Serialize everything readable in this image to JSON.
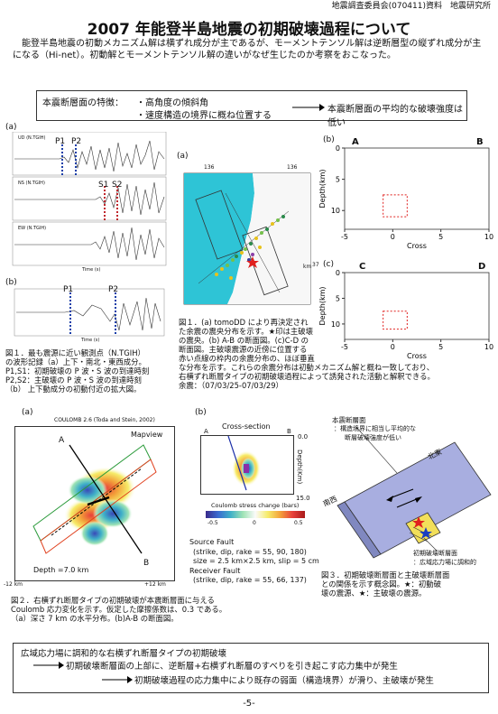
{
  "header": {
    "right_text": "地震調査委員会(070411)資料　地震研究所"
  },
  "title": "2007 年能登半島地震の初期破壊過程について",
  "intro": "　能登半島地震の初動メカニズム解は横ずれ成分が主であるが、モーメントテンソル解は逆断層型の縦ずれ成分が主になる（Hi-net）。初動解とモーメントテンソル解の違いがなぜ生じたのか考察をおこなった。",
  "feature_box": {
    "label": "本震断層面の特徴：",
    "item1": "・高角度の傾斜角",
    "item2": "・速度構造の境界に概ね位置する",
    "result": "本震断層面の平均的な破壊強度は低い"
  },
  "fig1": {
    "panel_a": "(a)",
    "panel_b": "(b)",
    "trace1_label": "UD (N.TGIH)",
    "trace2_label": "NS (N.TGIH)",
    "trace3_label": "EW (N.TGIH)",
    "p1": "P1",
    "p2": "P2",
    "s1": "S1",
    "s2": "S2",
    "time_label_a": "Time (s)",
    "time_label_b": "Time (s)",
    "caption": [
      "図１．最も震源に近い観測点（N.TGIH）",
      "の波形記録（a）上下・南北・東西成分。",
      "P1,S1：初期破壊の P 波・S 波の到達時刻",
      "P2,S2：主破壊の P 波・S 波の到達時刻",
      "（b） 上下動成分の初動付近の拡大図。"
    ]
  },
  "fig_map": {
    "panel_a": "(a)",
    "panel_b": "(b)",
    "panel_c": "(c)",
    "lon1": "136",
    "lon2": "136",
    "lat": "37",
    "km": "km",
    "label_A": "A",
    "label_B": "B",
    "label_C": "C",
    "label_D": "D",
    "depth_label": "Depth(km)",
    "cross_label": "Cross",
    "caption": [
      "図１．(a) tomoDD により再決定され",
      "た余震の震央分布を示す。★印は主破壊",
      "の震央。(b) A-B の断面図。(c)C-D の",
      "断面図。主破壊震源の近傍に位置する",
      "赤い点線の枠内の余震分布の、ほぼ垂直",
      "な分布を示す。これらの余震分布は初動メカニズム解と概ね一致しており、",
      "右横ずれ断層タイプの初期破壊過程によって誘発された活動と解釈できる。",
      "余震：（07/03/25-07/03/29）"
    ]
  },
  "chart_data": [
    {
      "type": "scatter",
      "panel": "(b)",
      "xlabel": "Cross",
      "ylabel": "Depth(km)",
      "xticks": [
        "-5",
        "0",
        "5",
        "10"
      ],
      "yticks": [
        "0",
        "5",
        "10"
      ],
      "xlim": [
        -5,
        10
      ],
      "ylim": [
        0,
        13
      ]
    },
    {
      "type": "scatter",
      "panel": "(c)",
      "xlabel": "Cross",
      "ylabel": "Depth(km)",
      "xticks": [
        "-5",
        "0",
        "5",
        "10"
      ],
      "yticks": [
        "0",
        "5",
        "10"
      ],
      "xlim": [
        -5,
        10
      ],
      "ylim": [
        0,
        13
      ]
    }
  ],
  "fig2": {
    "panel_a": "(a)",
    "panel_b": "(b)",
    "coulomb_title": "COULOMB 2.6 (Toda and Stein, 2002)",
    "mapview": "Mapview",
    "label_A": "A",
    "label_B": "B",
    "depth": "Depth =7.0 km",
    "x_left": "-12 km",
    "x_right": "+12 km",
    "cross_section": "Cross-section",
    "cs_A": "A",
    "cs_B": "B",
    "depth_axis": "Depth(Km)",
    "depth_top": "0.0",
    "depth_bottom": "15.0",
    "colorbar_title": "Coulomb stress change (bars)",
    "cb_min": "-0.5",
    "cb_zero": "0",
    "cb_max": "0.5",
    "source_fault": "Source Fault",
    "source_params": "(strike, dip, rake = 55, 90, 180)",
    "source_size": "size = 2.5 km×2.5 km, slip = 5 cm",
    "receiver_fault": "Receiver Fault",
    "receiver_params": "(strike, dip, rake = 55, 66, 137)",
    "caption": [
      "図２．右横ずれ断層タイプの初期破壊が本震断層面に与える",
      "Coulomb 応力変化を示す。仮定した摩擦係数は、0.3 である。",
      "（a）深さ 7 km の水平分布。(b)A-B の断面図。"
    ]
  },
  "fig3": {
    "main_fault": "本震断層面",
    "main_note1": "：構造境界に相当し平均的な",
    "main_note2": "断層破壊強度が低い",
    "hokuto": "北東",
    "nansei": "南西",
    "init_fault": "初期破壊断層面",
    "init_note": "：広域応力場に調和的",
    "caption": [
      "図３．初期破壊断層面と主破壊断層面",
      "との関係を示す概念図。★：初動破",
      "壊の震源、★：主破壊の震源。"
    ]
  },
  "summary": {
    "line1": "広域応力場に調和的な右横ずれ断層タイプの初期破壊",
    "line2": "初期破壊断層面の上部に、逆断層+右横ずれ断層のすべりを引き起こす応力集中が発生",
    "line3": "初期破壊過程の応力集中により既存の弱面（構造境界）が滑り、主破壊が発生"
  },
  "page_number": "-5-"
}
